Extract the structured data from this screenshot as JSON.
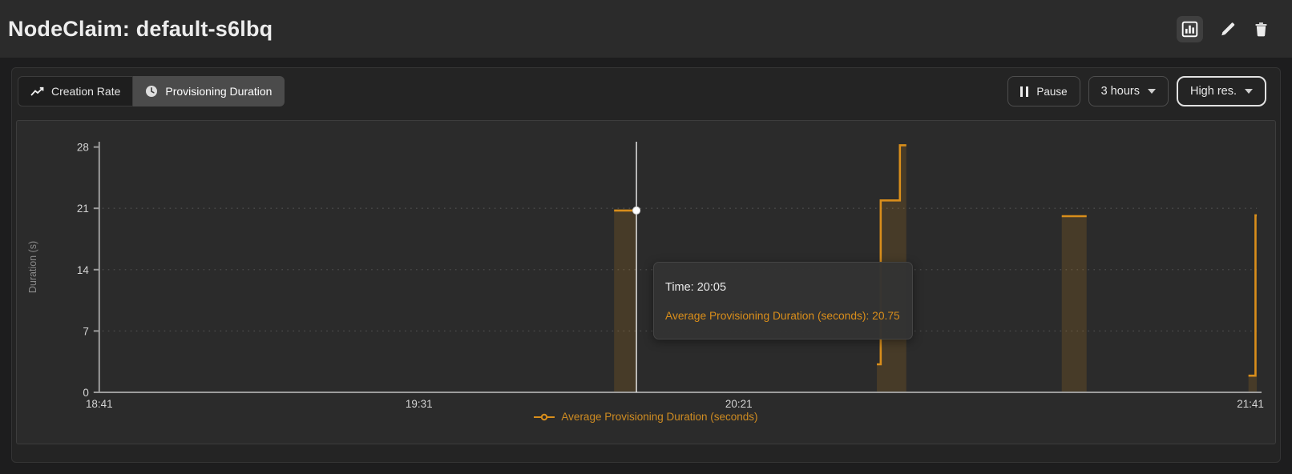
{
  "header": {
    "title": "NodeClaim: default-s6lbq",
    "actions": [
      {
        "name": "chart-view",
        "icon": "bar-chart-icon"
      },
      {
        "name": "edit",
        "icon": "pencil-icon"
      },
      {
        "name": "delete",
        "icon": "trash-icon"
      }
    ]
  },
  "toolbar": {
    "tabs": [
      {
        "label": "Creation Rate",
        "icon": "trend-line-icon",
        "active": false
      },
      {
        "label": "Provisioning Duration",
        "icon": "clock-icon",
        "active": true
      }
    ],
    "pause_label": "Pause",
    "pause_icon": "pause-icon",
    "range_label": "3 hours",
    "resolution_label": "High res."
  },
  "tooltip": {
    "time_label": "Time: 20:05",
    "value_label": "Average Provisioning Duration (seconds): 20.75"
  },
  "colors": {
    "accent_orange": "#d98e1b",
    "fill_orange": "rgba(217,142,27,0.16)",
    "axis": "#9c9c9c",
    "grid": "#565656",
    "crosshair": "#ededed",
    "tick_text": "#d4d4d4",
    "ylabel_text": "#8a8a8a"
  },
  "chart_data": {
    "type": "step-area",
    "title": "Provisioning Duration",
    "ylabel": "Duration (s)",
    "series_name": "Average Provisioning Duration (seconds)",
    "legend": "Average Provisioning Duration (seconds)",
    "ylim": [
      0,
      28.6
    ],
    "yticks": [
      0,
      7,
      14,
      21,
      28
    ],
    "ygrid": [
      7,
      14,
      21
    ],
    "xlim_minutes": [
      0,
      181
    ],
    "xticks": [
      {
        "label": "18:41",
        "minute": 0
      },
      {
        "label": "19:31",
        "minute": 50
      },
      {
        "label": "20:21",
        "minute": 100
      },
      {
        "label": "21:41",
        "minute": 180
      }
    ],
    "segments": [
      {
        "points": [
          [
            80.5,
            20.75
          ],
          [
            84,
            20.75
          ]
        ]
      },
      {
        "points": [
          [
            121.6,
            3.2
          ],
          [
            122.2,
            3.2
          ],
          [
            122.2,
            21.9
          ],
          [
            125.2,
            21.9
          ],
          [
            125.2,
            28.2
          ],
          [
            126.2,
            28.2
          ]
        ]
      },
      {
        "points": [
          [
            150.5,
            20.1
          ],
          [
            154.4,
            20.1
          ]
        ]
      },
      {
        "points": [
          [
            179.7,
            1.9
          ],
          [
            180.8,
            1.9
          ],
          [
            180.8,
            20.2
          ],
          [
            181,
            20.2
          ]
        ]
      }
    ],
    "crosshair": {
      "minute": 84,
      "value": 20.75,
      "time": "20:05"
    }
  }
}
